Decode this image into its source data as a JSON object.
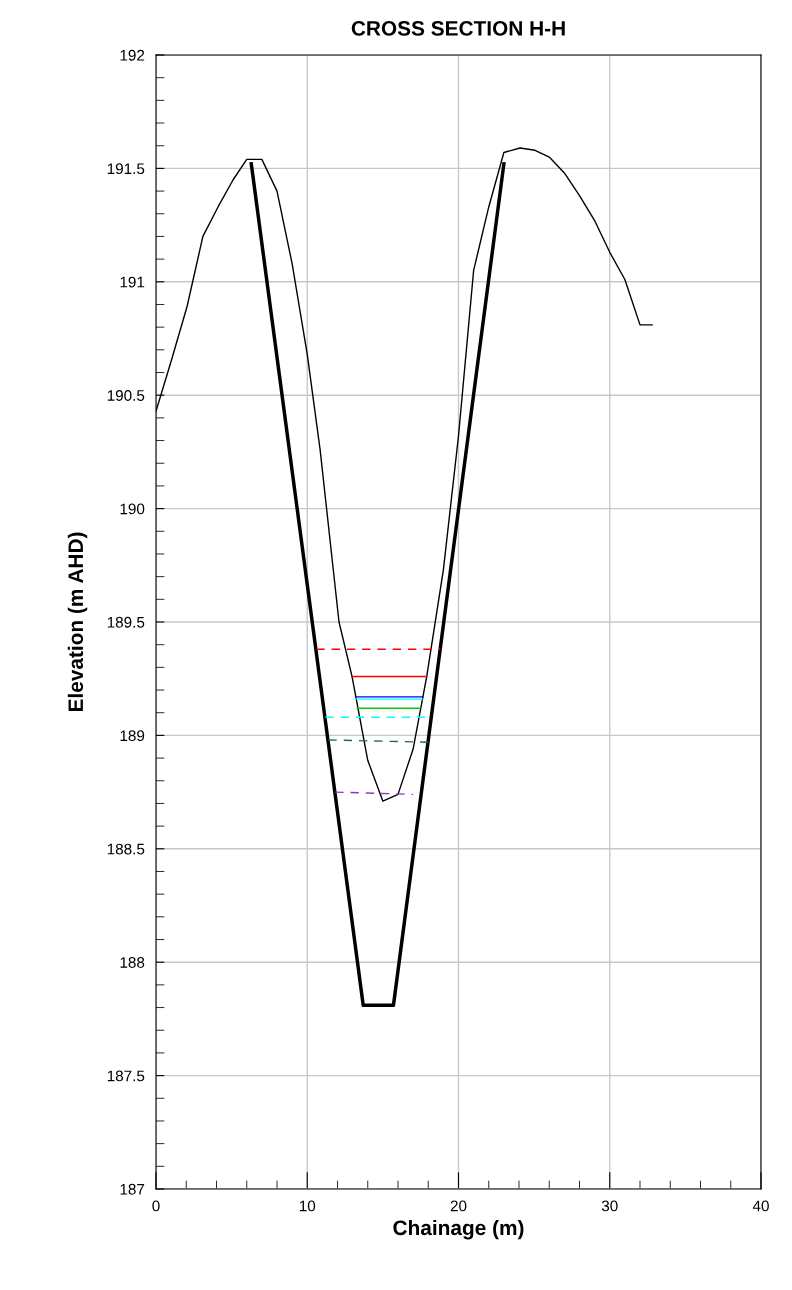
{
  "chart_data": {
    "type": "line",
    "title": "CROSS SECTION H-H",
    "xlabel": "Chainage (m)",
    "ylabel": "Elevation (m AHD)",
    "xlim": [
      0,
      40
    ],
    "ylim": [
      187,
      192
    ],
    "xticks": [
      0,
      {
        "value": 2,
        "label": null
      },
      {
        "value": 4,
        "label": null
      },
      {
        "value": 6,
        "label": null
      },
      {
        "value": 8,
        "label": null
      },
      10,
      {
        "value": 12,
        "label": null
      },
      {
        "value": 14,
        "label": null
      },
      {
        "value": 16,
        "label": null
      },
      {
        "value": 18,
        "label": null
      },
      20,
      {
        "value": 22,
        "label": null
      },
      {
        "value": 24,
        "label": null
      },
      {
        "value": 26,
        "label": null
      },
      {
        "value": 28,
        "label": null
      },
      30,
      {
        "value": 32,
        "label": null
      },
      {
        "value": 34,
        "label": null
      },
      {
        "value": 36,
        "label": null
      },
      {
        "value": 38,
        "label": null
      },
      40
    ],
    "yticks": [
      187,
      {
        "value": 187.1,
        "label": null
      },
      {
        "value": 187.2,
        "label": null
      },
      {
        "value": 187.3,
        "label": null
      },
      {
        "value": 187.4,
        "label": null
      },
      187.5,
      {
        "value": 187.6,
        "label": null
      },
      {
        "value": 187.7,
        "label": null
      },
      {
        "value": 187.8,
        "label": null
      },
      {
        "value": 187.9,
        "label": null
      },
      188,
      {
        "value": 188.1,
        "label": null
      },
      {
        "value": 188.2,
        "label": null
      },
      {
        "value": 188.3,
        "label": null
      },
      {
        "value": 188.4,
        "label": null
      },
      188.5,
      {
        "value": 188.6,
        "label": null
      },
      {
        "value": 188.7,
        "label": null
      },
      {
        "value": 188.8,
        "label": null
      },
      {
        "value": 188.9,
        "label": null
      },
      189,
      {
        "value": 189.1,
        "label": null
      },
      {
        "value": 189.2,
        "label": null
      },
      {
        "value": 189.3,
        "label": null
      },
      {
        "value": 189.4,
        "label": null
      },
      189.5,
      {
        "value": 189.6,
        "label": null
      },
      {
        "value": 189.7,
        "label": null
      },
      {
        "value": 189.8,
        "label": null
      },
      {
        "value": 189.9,
        "label": null
      },
      190,
      {
        "value": 190.1,
        "label": null
      },
      {
        "value": 190.2,
        "label": null
      },
      {
        "value": 190.3,
        "label": null
      },
      {
        "value": 190.4,
        "label": null
      },
      190.5,
      {
        "value": 190.6,
        "label": null
      },
      {
        "value": 190.7,
        "label": null
      },
      {
        "value": 190.8,
        "label": null
      },
      {
        "value": 190.9,
        "label": null
      },
      191,
      {
        "value": 191.1,
        "label": null
      },
      {
        "value": 191.2,
        "label": null
      },
      {
        "value": 191.3,
        "label": null
      },
      {
        "value": 191.4,
        "label": null
      },
      191.5,
      {
        "value": 191.6,
        "label": null
      },
      {
        "value": 191.7,
        "label": null
      },
      {
        "value": 191.8,
        "label": null
      },
      {
        "value": 191.9,
        "label": null
      },
      192
    ],
    "grid": true,
    "marker": "none",
    "series": [
      {
        "color": "#000000",
        "line_style": "solid",
        "x": [
          0,
          1,
          2.05,
          3.1,
          4.1,
          5.1,
          6,
          7,
          8,
          9,
          10,
          10.85,
          12.1,
          12.96,
          14,
          15,
          16,
          17,
          17.9,
          19,
          20,
          21,
          22,
          23,
          24.07,
          25.06,
          26,
          27,
          28,
          29,
          30,
          31,
          32,
          32.8
        ],
        "values": [
          190.43,
          190.65,
          190.89,
          191.2,
          191.33,
          191.45,
          191.54,
          191.54,
          191.4,
          191.08,
          190.68,
          190.26,
          189.5,
          189.26,
          188.89,
          188.71,
          188.74,
          188.94,
          189.26,
          189.73,
          190.32,
          191.05,
          191.33,
          191.57,
          191.59,
          191.58,
          191.55,
          191.48,
          191.38,
          191.27,
          191.13,
          191.01,
          190.81,
          190.81
        ]
      },
      {
        "color": "#000000",
        "line_style": "solid",
        "x": [
          6.3,
          13.7,
          15.7,
          23
        ],
        "values": [
          191.52,
          187.81,
          187.81,
          191.52
        ]
      },
      {
        "color": "#ff0000",
        "line_style": "dashed",
        "x": [
          10.6,
          18.8
        ],
        "values": [
          189.38,
          189.38
        ]
      },
      {
        "color": "#ff0000",
        "line_style": "solid",
        "x": [
          12.95,
          17.9
        ],
        "values": [
          189.26,
          189.26
        ]
      },
      {
        "color": "#0000ff",
        "line_style": "solid",
        "x": [
          13.2,
          17.65
        ],
        "values": [
          189.17,
          189.17
        ]
      },
      {
        "color": "#00ffff",
        "line_style": "solid",
        "x": [
          13.2,
          17.65
        ],
        "values": [
          189.16,
          189.16
        ]
      },
      {
        "color": "#00cc00",
        "line_style": "solid",
        "x": [
          13.3,
          17.45
        ],
        "values": [
          189.12,
          189.12
        ]
      },
      {
        "color": "#00ffff",
        "line_style": "dashed",
        "x": [
          11.2,
          17.8
        ],
        "values": [
          189.08,
          189.08
        ]
      },
      {
        "color": "#1f6b4f",
        "line_style": "dashed",
        "x": [
          11.4,
          18
        ],
        "values": [
          188.98,
          188.97
        ]
      },
      {
        "color": "#9932cc",
        "line_style": "dashed",
        "x": [
          11.85,
          17
        ],
        "values": [
          188.75,
          188.74
        ]
      }
    ]
  }
}
